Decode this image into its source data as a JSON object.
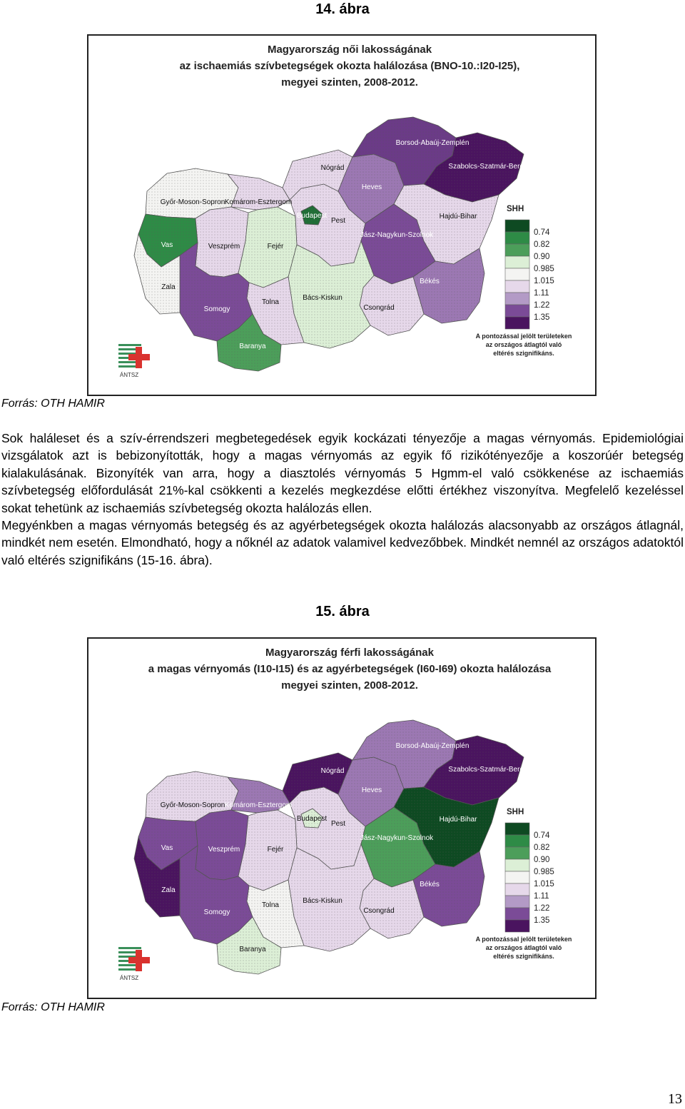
{
  "figure14": {
    "label": "14. ábra",
    "title_line1": "Magyarország női lakosságának",
    "title_line2": "az ischaemiás szívbetegségek okozta halálozása (BNO-10.:I20-I25),",
    "title_line3": "megyei szinten, 2008-2012.",
    "source": "Forrás: OTH HAMIR",
    "colors": {
      "gyor": "#f4f4f2",
      "komarom": "#e6d8ea",
      "vas": "#2e8b46",
      "veszprem": "#e6d8ea",
      "fejer": "#dcefd6",
      "budapest": "#1f6e36",
      "pest": "#e6d8ea",
      "nograd": "#e6d8ea",
      "heves": "#9c78b3",
      "borsod": "#6b3b87",
      "szabolcs": "#4a145f",
      "hajdu": "#e6d8ea",
      "jasz": "#7b4b97",
      "bekes": "#9c78b3",
      "csongrad": "#e6d8ea",
      "bacs": "#dcefd6",
      "tolna": "#e6d8ea",
      "somogy": "#7b4b97",
      "zala": "#f4f4f2",
      "baranya": "#4c9e5a"
    }
  },
  "figure15": {
    "label": "15. ábra",
    "title_line1": "Magyarország férfi lakosságának",
    "title_line2": "a magas vérnyomás (I10-I15) és az agyérbetegségek (I60-I69) okozta halálozása",
    "title_line3": "megyei szinten, 2008-2012.",
    "source": "Forrás: OTH HAMIR",
    "colors": {
      "gyor": "#e6d8ea",
      "komarom": "#9c78b3",
      "vas": "#7b4b97",
      "veszprem": "#7b4b97",
      "fejer": "#e6d8ea",
      "budapest": "#dcefd6",
      "pest": "#e6d8ea",
      "nograd": "#4a145f",
      "heves": "#9c78b3",
      "borsod": "#9c78b3",
      "szabolcs": "#4a145f",
      "hajdu": "#0e4a22",
      "jasz": "#4c9e5a",
      "bekes": "#7b4b97",
      "csongrad": "#e6d8ea",
      "bacs": "#e6d8ea",
      "tolna": "#f4f4f2",
      "somogy": "#7b4b97",
      "zala": "#4a145f",
      "baranya": "#dcefd6"
    }
  },
  "counties": {
    "gyor": "Győr-Moson-Sopron",
    "komarom": "Komárom-Esztergom",
    "vas": "Vas",
    "veszprem": "Veszprém",
    "fejer": "Fejér",
    "budapest": "Budapest",
    "pest": "Pest",
    "nograd": "Nógrád",
    "heves": "Heves",
    "borsod": "Borsod-Abaúj-Zemplén",
    "szabolcs": "Szabolcs-Szatmár-Bereg",
    "hajdu": "Hajdú-Bihar",
    "jasz": "Jász-Nagykun-Szolnok",
    "bekes": "Békés",
    "csongrad": "Csongrád",
    "bacs": "Bács-Kiskun",
    "tolna": "Tolna",
    "somogy": "Somogy",
    "zala": "Zala",
    "baranya": "Baranya"
  },
  "legend": {
    "title": "SHH",
    "values": [
      "0.74",
      "0.82",
      "0.90",
      "0.985",
      "1.015",
      "1.11",
      "1.22",
      "1.35"
    ],
    "colors": [
      "#0e4a22",
      "#2e8b46",
      "#4c9e5a",
      "#dcefd6",
      "#f4f4f2",
      "#e6d8ea",
      "#b39ac6",
      "#7b4b97",
      "#4a145f"
    ],
    "note_line1": "A pontozással jelölt területeken",
    "note_line2": "az országos átlagtól való",
    "note_line3": "eltérés szignifikáns."
  },
  "logo_text": "ÁNTSZ",
  "paragraphs": {
    "p1": "Sok haláleset és a szív-érrendszeri megbetegedések egyik kockázati tényezője a magas vérnyomás. Epidemiológiai vizsgálatok azt is bebizonyították, hogy a magas vérnyomás az egyik fő rizikótényezője a koszorúér betegség kialakulásának. Bizonyíték van arra, hogy a diasztolés vérnyomás 5 Hgmm-el való csökkenése az ischaemiás szívbetegség előfordulását 21%-kal csökkenti a kezelés megkezdése előtti értékhez viszonyítva. Megfelelő kezeléssel sokat tehetünk az ischaemiás szívbetegség okozta halálozás ellen.",
    "p2": "Megyénkben a magas vérnyomás betegség és az agyérbetegségek okozta halálozás alacsonyabb az országos átlagnál, mindkét nem esetén. Elmondható, hogy a nőknél az adatok valamivel kedvezőbbek. Mindkét nemnél az országos adatoktól való eltérés szignifikáns (15-16. ábra)."
  },
  "page_number": "13"
}
